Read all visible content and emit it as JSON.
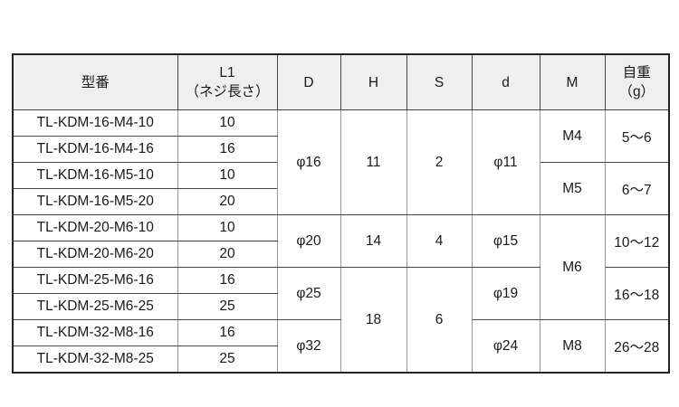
{
  "headers": {
    "model": "型番",
    "l1_line1": "L1",
    "l1_line2": "（ネジ長さ）",
    "D": "D",
    "H": "H",
    "S": "S",
    "d": "d",
    "M": "M",
    "weight_line1": "自重",
    "weight_line2": "（g）"
  },
  "rows": [
    {
      "model": "TL-KDM-16-M4-10",
      "l1": "10"
    },
    {
      "model": "TL-KDM-16-M4-16",
      "l1": "16"
    },
    {
      "model": "TL-KDM-16-M5-10",
      "l1": "10"
    },
    {
      "model": "TL-KDM-16-M5-20",
      "l1": "20"
    },
    {
      "model": "TL-KDM-20-M6-10",
      "l1": "10"
    },
    {
      "model": "TL-KDM-20-M6-20",
      "l1": "20"
    },
    {
      "model": "TL-KDM-25-M6-16",
      "l1": "16"
    },
    {
      "model": "TL-KDM-25-M6-25",
      "l1": "25"
    },
    {
      "model": "TL-KDM-32-M8-16",
      "l1": "16"
    },
    {
      "model": "TL-KDM-32-M8-25",
      "l1": "25"
    }
  ],
  "D": [
    "φ16",
    "φ20",
    "φ25",
    "φ32"
  ],
  "H": [
    "11",
    "14",
    "18"
  ],
  "S": [
    "2",
    "4",
    "6"
  ],
  "d": [
    "φ11",
    "φ15",
    "φ19",
    "φ24"
  ],
  "M": [
    "M4",
    "M5",
    "M6",
    "M8"
  ],
  "weight": [
    "5〜6",
    "6〜7",
    "10〜12",
    "16〜18",
    "26〜28"
  ]
}
